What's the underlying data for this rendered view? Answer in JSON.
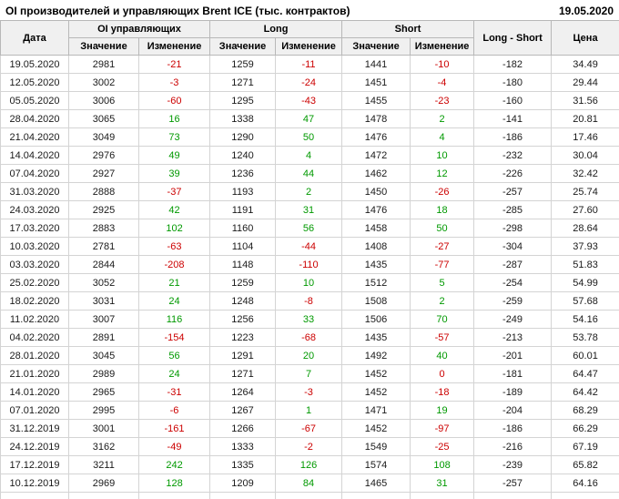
{
  "header": {
    "title": "OI производителей и управляющих Brent ICE (тыс. контрактов)",
    "date": "19.05.2020"
  },
  "table": {
    "columns": {
      "date": "Дата",
      "oi_group": "OI управляющих",
      "long_group": "Long",
      "short_group": "Short",
      "value": "Значение",
      "change": "Изменение",
      "long_short": "Long - Short",
      "price": "Цена"
    },
    "rows": [
      {
        "date": "19.05.2020",
        "oi": "2981",
        "oi_chg": "-21",
        "long": "1259",
        "long_chg": "-11",
        "short": "1441",
        "short_chg": "-10",
        "long_short": "-182",
        "price": "34.49"
      },
      {
        "date": "12.05.2020",
        "oi": "3002",
        "oi_chg": "-3",
        "long": "1271",
        "long_chg": "-24",
        "short": "1451",
        "short_chg": "-4",
        "long_short": "-180",
        "price": "29.44"
      },
      {
        "date": "05.05.2020",
        "oi": "3006",
        "oi_chg": "-60",
        "long": "1295",
        "long_chg": "-43",
        "short": "1455",
        "short_chg": "-23",
        "long_short": "-160",
        "price": "31.56"
      },
      {
        "date": "28.04.2020",
        "oi": "3065",
        "oi_chg": "16",
        "long": "1338",
        "long_chg": "47",
        "short": "1478",
        "short_chg": "2",
        "long_short": "-141",
        "price": "20.81"
      },
      {
        "date": "21.04.2020",
        "oi": "3049",
        "oi_chg": "73",
        "long": "1290",
        "long_chg": "50",
        "short": "1476",
        "short_chg": "4",
        "long_short": "-186",
        "price": "17.46"
      },
      {
        "date": "14.04.2020",
        "oi": "2976",
        "oi_chg": "49",
        "long": "1240",
        "long_chg": "4",
        "short": "1472",
        "short_chg": "10",
        "long_short": "-232",
        "price": "30.04"
      },
      {
        "date": "07.04.2020",
        "oi": "2927",
        "oi_chg": "39",
        "long": "1236",
        "long_chg": "44",
        "short": "1462",
        "short_chg": "12",
        "long_short": "-226",
        "price": "32.42"
      },
      {
        "date": "31.03.2020",
        "oi": "2888",
        "oi_chg": "-37",
        "long": "1193",
        "long_chg": "2",
        "short": "1450",
        "short_chg": "-26",
        "long_short": "-257",
        "price": "25.74"
      },
      {
        "date": "24.03.2020",
        "oi": "2925",
        "oi_chg": "42",
        "long": "1191",
        "long_chg": "31",
        "short": "1476",
        "short_chg": "18",
        "long_short": "-285",
        "price": "27.60"
      },
      {
        "date": "17.03.2020",
        "oi": "2883",
        "oi_chg": "102",
        "long": "1160",
        "long_chg": "56",
        "short": "1458",
        "short_chg": "50",
        "long_short": "-298",
        "price": "28.64"
      },
      {
        "date": "10.03.2020",
        "oi": "2781",
        "oi_chg": "-63",
        "long": "1104",
        "long_chg": "-44",
        "short": "1408",
        "short_chg": "-27",
        "long_short": "-304",
        "price": "37.93"
      },
      {
        "date": "03.03.2020",
        "oi": "2844",
        "oi_chg": "-208",
        "long": "1148",
        "long_chg": "-110",
        "short": "1435",
        "short_chg": "-77",
        "long_short": "-287",
        "price": "51.83"
      },
      {
        "date": "25.02.2020",
        "oi": "3052",
        "oi_chg": "21",
        "long": "1259",
        "long_chg": "10",
        "short": "1512",
        "short_chg": "5",
        "long_short": "-254",
        "price": "54.99"
      },
      {
        "date": "18.02.2020",
        "oi": "3031",
        "oi_chg": "24",
        "long": "1248",
        "long_chg": "-8",
        "short": "1508",
        "short_chg": "2",
        "long_short": "-259",
        "price": "57.68"
      },
      {
        "date": "11.02.2020",
        "oi": "3007",
        "oi_chg": "116",
        "long": "1256",
        "long_chg": "33",
        "short": "1506",
        "short_chg": "70",
        "long_short": "-249",
        "price": "54.16"
      },
      {
        "date": "04.02.2020",
        "oi": "2891",
        "oi_chg": "-154",
        "long": "1223",
        "long_chg": "-68",
        "short": "1435",
        "short_chg": "-57",
        "long_short": "-213",
        "price": "53.78"
      },
      {
        "date": "28.01.2020",
        "oi": "3045",
        "oi_chg": "56",
        "long": "1291",
        "long_chg": "20",
        "short": "1492",
        "short_chg": "40",
        "long_short": "-201",
        "price": "60.01"
      },
      {
        "date": "21.01.2020",
        "oi": "2989",
        "oi_chg": "24",
        "long": "1271",
        "long_chg": "7",
        "short": "1452",
        "short_chg": "0",
        "long_short": "-181",
        "price": "64.47"
      },
      {
        "date": "14.01.2020",
        "oi": "2965",
        "oi_chg": "-31",
        "long": "1264",
        "long_chg": "-3",
        "short": "1452",
        "short_chg": "-18",
        "long_short": "-189",
        "price": "64.42"
      },
      {
        "date": "07.01.2020",
        "oi": "2995",
        "oi_chg": "-6",
        "long": "1267",
        "long_chg": "1",
        "short": "1471",
        "short_chg": "19",
        "long_short": "-204",
        "price": "68.29"
      },
      {
        "date": "31.12.2019",
        "oi": "3001",
        "oi_chg": "-161",
        "long": "1266",
        "long_chg": "-67",
        "short": "1452",
        "short_chg": "-97",
        "long_short": "-186",
        "price": "66.29"
      },
      {
        "date": "24.12.2019",
        "oi": "3162",
        "oi_chg": "-49",
        "long": "1333",
        "long_chg": "-2",
        "short": "1549",
        "short_chg": "-25",
        "long_short": "-216",
        "price": "67.19"
      },
      {
        "date": "17.12.2019",
        "oi": "3211",
        "oi_chg": "242",
        "long": "1335",
        "long_chg": "126",
        "short": "1574",
        "short_chg": "108",
        "long_short": "-239",
        "price": "65.82"
      },
      {
        "date": "10.12.2019",
        "oi": "2969",
        "oi_chg": "128",
        "long": "1209",
        "long_chg": "84",
        "short": "1465",
        "short_chg": "31",
        "long_short": "-257",
        "price": "64.16"
      }
    ]
  },
  "colors": {
    "positive": "#009900",
    "negative": "#cc0000"
  }
}
